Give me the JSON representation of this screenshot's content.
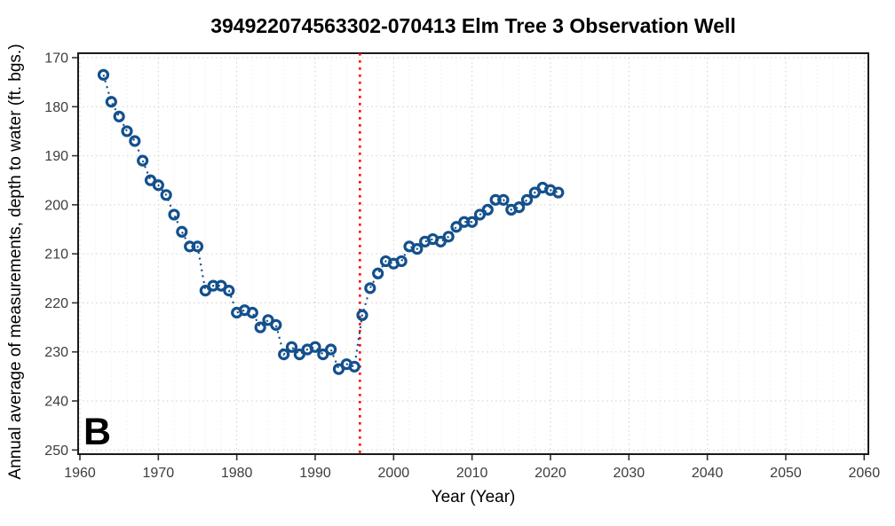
{
  "panel_label": "B",
  "chart_data": {
    "type": "scatter",
    "title": "394922074563302-070413 Elm Tree 3 Observation Well",
    "xlabel": "Year (Year)",
    "ylabel": "Annual average of measurements, depth to water (ft. bgs.)",
    "x_ticks": [
      1960,
      1970,
      1980,
      1990,
      2000,
      2010,
      2020,
      2030,
      2040,
      2050,
      2060
    ],
    "y_ticks": [
      170,
      180,
      190,
      200,
      210,
      220,
      230,
      240,
      250
    ],
    "xlim": [
      1959.8,
      2060.5
    ],
    "ylim": [
      169.1,
      250.9
    ],
    "y_axis_inverted": true,
    "grid": {
      "style": "dotted",
      "major_color": "#d2d2d2",
      "minor_color": "#ededed",
      "minor_x_interval_years": 2
    },
    "reference_line": {
      "x": 1995.7,
      "color": "#ff0000",
      "style": "dotted",
      "orientation": "vertical"
    },
    "series": [
      {
        "name": "annual-average-depth-to-water",
        "marker": "open-circle",
        "marker_color": "#14508c",
        "line_style": "dotted",
        "points": [
          [
            1963,
            173.5
          ],
          [
            1964,
            179.0
          ],
          [
            1965,
            182.0
          ],
          [
            1966,
            185.0
          ],
          [
            1967,
            187.0
          ],
          [
            1968,
            191.0
          ],
          [
            1969,
            195.0
          ],
          [
            1970,
            196.0
          ],
          [
            1971,
            198.0
          ],
          [
            1972,
            202.0
          ],
          [
            1973,
            205.5
          ],
          [
            1974,
            208.5
          ],
          [
            1975,
            208.5
          ],
          [
            1976,
            217.5
          ],
          [
            1977,
            216.5
          ],
          [
            1978,
            216.5
          ],
          [
            1979,
            217.5
          ],
          [
            1980,
            222.0
          ],
          [
            1981,
            221.5
          ],
          [
            1982,
            222.0
          ],
          [
            1983,
            225.0
          ],
          [
            1984,
            223.5
          ],
          [
            1985,
            224.5
          ],
          [
            1986,
            230.5
          ],
          [
            1987,
            229.0
          ],
          [
            1988,
            230.5
          ],
          [
            1989,
            229.5
          ],
          [
            1990,
            229.0
          ],
          [
            1991,
            230.5
          ],
          [
            1992,
            229.5
          ],
          [
            1993,
            233.5
          ],
          [
            1994,
            232.5
          ],
          [
            1995,
            233.0
          ],
          [
            1996,
            222.5
          ],
          [
            1997,
            217.0
          ],
          [
            1998,
            214.0
          ],
          [
            1999,
            211.5
          ],
          [
            2000,
            212.0
          ],
          [
            2001,
            211.5
          ],
          [
            2002,
            208.5
          ],
          [
            2003,
            209.0
          ],
          [
            2004,
            207.5
          ],
          [
            2005,
            207.0
          ],
          [
            2006,
            207.5
          ],
          [
            2007,
            206.5
          ],
          [
            2008,
            204.5
          ],
          [
            2009,
            203.5
          ],
          [
            2010,
            203.5
          ],
          [
            2011,
            202.0
          ],
          [
            2012,
            201.0
          ],
          [
            2013,
            199.0
          ],
          [
            2014,
            199.0
          ],
          [
            2015,
            201.0
          ],
          [
            2016,
            200.5
          ],
          [
            2017,
            199.0
          ],
          [
            2018,
            197.5
          ],
          [
            2019,
            196.5
          ],
          [
            2020,
            197.0
          ],
          [
            2021,
            197.5
          ]
        ]
      }
    ]
  }
}
